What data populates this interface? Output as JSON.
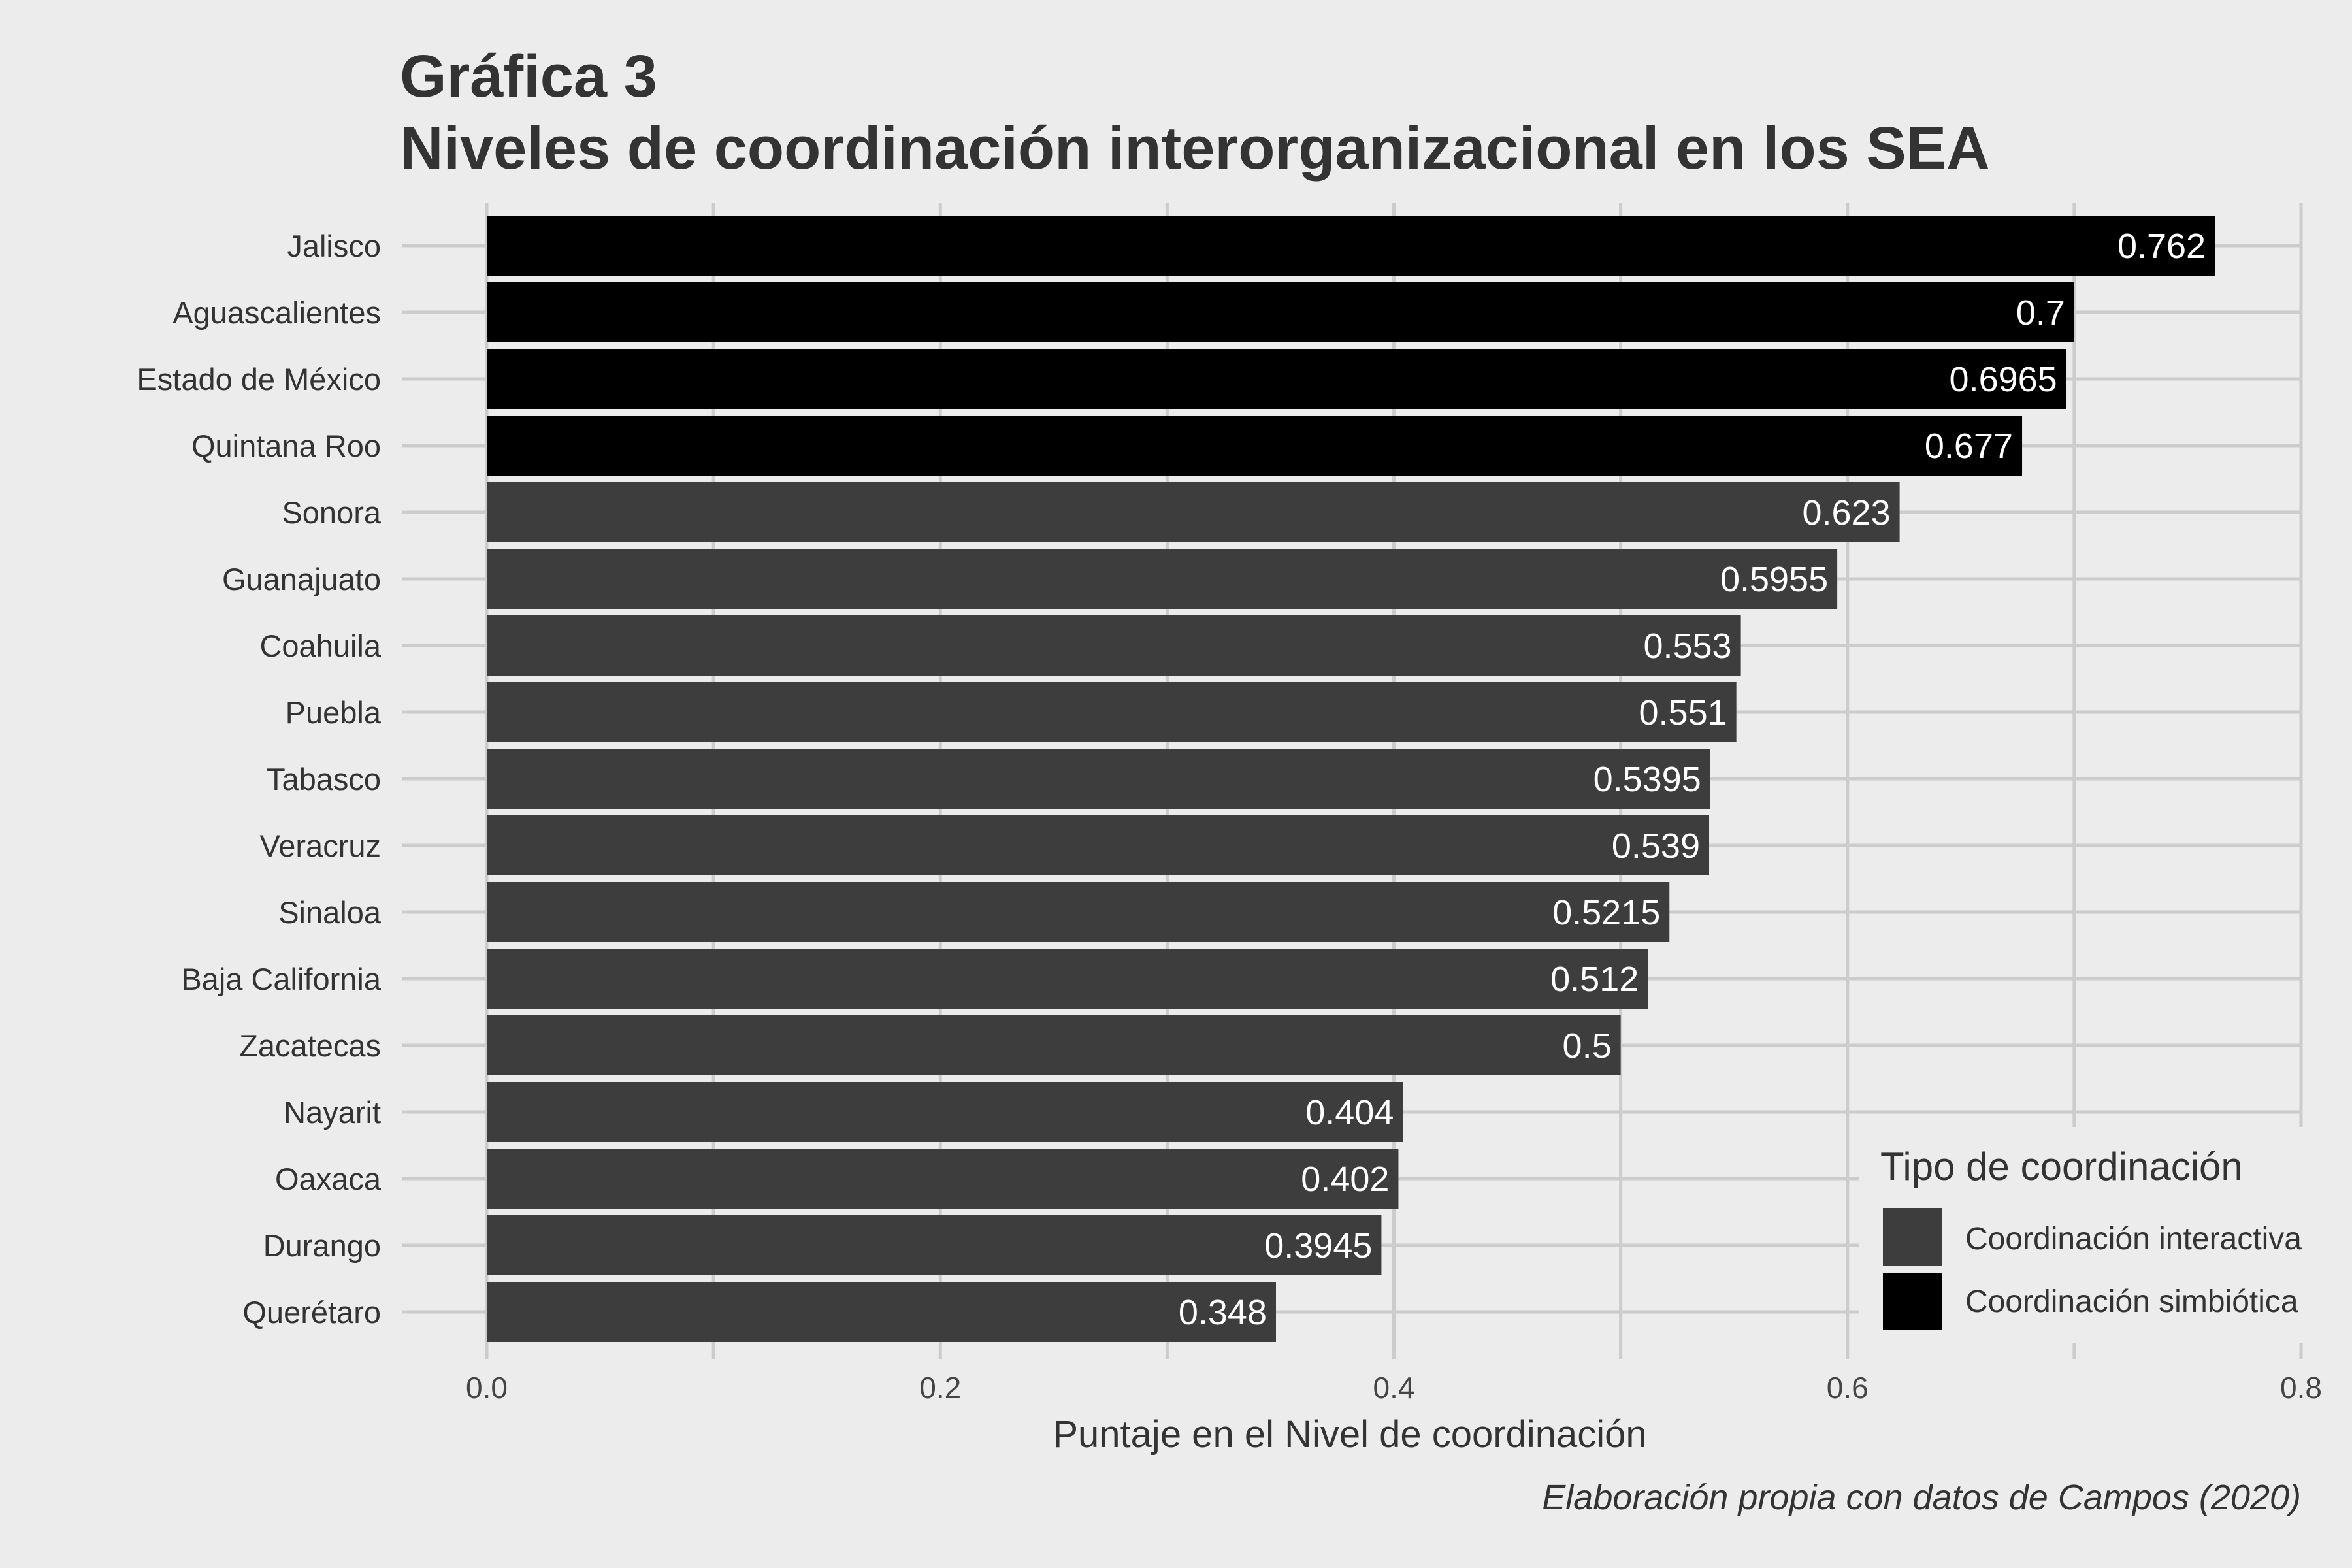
{
  "chart_data": {
    "type": "bar",
    "orientation": "horizontal",
    "title": "Gráfica 3",
    "subtitle": "Niveles de coordinación interorganizacional en los SEA",
    "xlabel": "Puntaje en el Nivel de coordinación",
    "ylabel": "",
    "caption": "Elaboración propia con datos de Campos (2020)",
    "xlim": [
      0,
      0.8
    ],
    "xticks": [
      0,
      0.2,
      0.4,
      0.6,
      0.8
    ],
    "xtick_labels": [
      "0.0",
      "0.2",
      "0.4",
      "0.6",
      "0.8"
    ],
    "grid": true,
    "legend": {
      "title": "Tipo de coordinación",
      "position": "bottom-right",
      "entries": [
        {
          "name": "Coordinación interactiva",
          "color": "#3d3d3d"
        },
        {
          "name": "Coordinación simbiótica",
          "color": "#000000"
        }
      ]
    },
    "categories": [
      "Jalisco",
      "Aguascalientes",
      "Estado de México",
      "Quintana Roo",
      "Sonora",
      "Guanajuato",
      "Coahuila",
      "Puebla",
      "Tabasco",
      "Veracruz",
      "Sinaloa",
      "Baja California",
      "Zacatecas",
      "Nayarit",
      "Oaxaca",
      "Durango",
      "Querétaro"
    ],
    "values": [
      0.762,
      0.7,
      0.6965,
      0.677,
      0.623,
      0.5955,
      0.553,
      0.551,
      0.5395,
      0.539,
      0.5215,
      0.512,
      0.5,
      0.404,
      0.402,
      0.3945,
      0.348
    ],
    "value_labels": [
      "0.762",
      "0.7",
      "0.6965",
      "0.677",
      "0.623",
      "0.5955",
      "0.553",
      "0.551",
      "0.5395",
      "0.539",
      "0.5215",
      "0.512",
      "0.5",
      "0.404",
      "0.402",
      "0.3945",
      "0.348"
    ],
    "groups": [
      "Coordinación simbiótica",
      "Coordinación simbiótica",
      "Coordinación simbiótica",
      "Coordinación simbiótica",
      "Coordinación interactiva",
      "Coordinación interactiva",
      "Coordinación interactiva",
      "Coordinación interactiva",
      "Coordinación interactiva",
      "Coordinación interactiva",
      "Coordinación interactiva",
      "Coordinación interactiva",
      "Coordinación interactiva",
      "Coordinación interactiva",
      "Coordinación interactiva",
      "Coordinación interactiva",
      "Coordinación interactiva"
    ]
  }
}
